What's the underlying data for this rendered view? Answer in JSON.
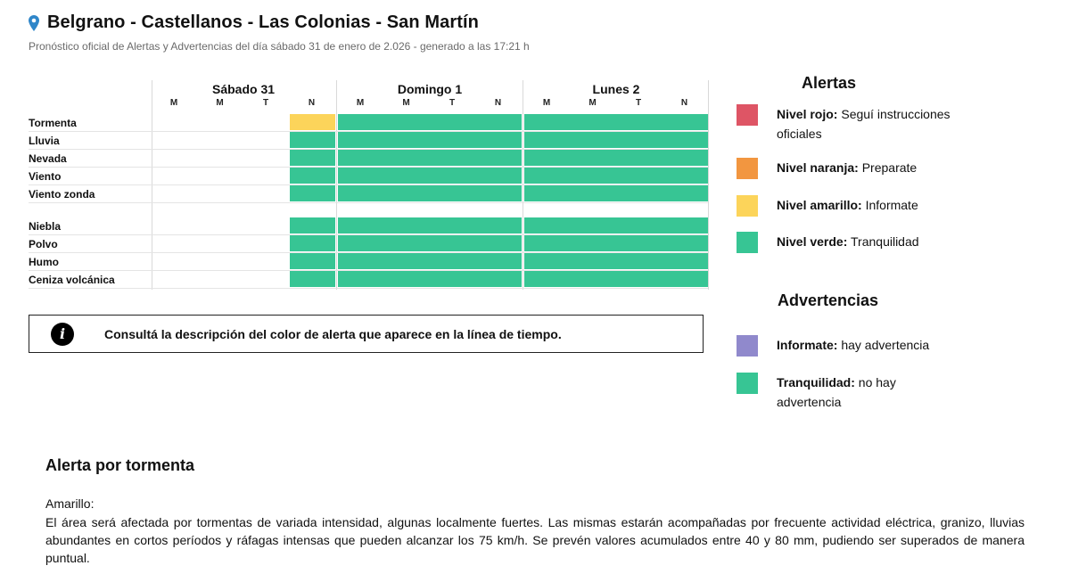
{
  "header": {
    "title": "Belgrano - Castellanos - Las Colonias - San Martín",
    "subtitle": "Pronóstico oficial de Alertas y Advertencias del día sábado 31 de enero de 2.026 - generado a las 17:21 h"
  },
  "timeline": {
    "days": [
      {
        "name": "Sábado 31",
        "periods": [
          "M",
          "M",
          "T",
          "N"
        ]
      },
      {
        "name": "Domingo 1",
        "periods": [
          "M",
          "M",
          "T",
          "N"
        ]
      },
      {
        "name": "Lunes 2",
        "periods": [
          "M",
          "M",
          "T",
          "N"
        ]
      }
    ],
    "hazards": [
      {
        "label": "Tormenta",
        "levels": [
          "none",
          "none",
          "none",
          "amarillo",
          "verde",
          "verde",
          "verde",
          "verde",
          "verde",
          "verde",
          "verde",
          "verde"
        ]
      },
      {
        "label": "Lluvia",
        "levels": [
          "none",
          "none",
          "none",
          "verde",
          "verde",
          "verde",
          "verde",
          "verde",
          "verde",
          "verde",
          "verde",
          "verde"
        ]
      },
      {
        "label": "Nevada",
        "levels": [
          "none",
          "none",
          "none",
          "verde",
          "verde",
          "verde",
          "verde",
          "verde",
          "verde",
          "verde",
          "verde",
          "verde"
        ]
      },
      {
        "label": "Viento",
        "levels": [
          "none",
          "none",
          "none",
          "verde",
          "verde",
          "verde",
          "verde",
          "verde",
          "verde",
          "verde",
          "verde",
          "verde"
        ]
      },
      {
        "label": "Viento zonda",
        "levels": [
          "none",
          "none",
          "none",
          "verde",
          "verde",
          "verde",
          "verde",
          "verde",
          "verde",
          "verde",
          "verde",
          "verde"
        ]
      }
    ],
    "warnings": [
      {
        "label": "Niebla",
        "levels": [
          "none",
          "none",
          "none",
          "verde",
          "verde",
          "verde",
          "verde",
          "verde",
          "verde",
          "verde",
          "verde",
          "verde"
        ]
      },
      {
        "label": "Polvo",
        "levels": [
          "none",
          "none",
          "none",
          "verde",
          "verde",
          "verde",
          "verde",
          "verde",
          "verde",
          "verde",
          "verde",
          "verde"
        ]
      },
      {
        "label": "Humo",
        "levels": [
          "none",
          "none",
          "none",
          "verde",
          "verde",
          "verde",
          "verde",
          "verde",
          "verde",
          "verde",
          "verde",
          "verde"
        ]
      },
      {
        "label": "Ceniza volcánica",
        "levels": [
          "none",
          "none",
          "none",
          "verde",
          "verde",
          "verde",
          "verde",
          "verde",
          "verde",
          "verde",
          "verde",
          "verde"
        ]
      }
    ]
  },
  "colors": {
    "rojo": "#de5565",
    "naranja": "#f29640",
    "amarillo": "#fcd45a",
    "verde": "#37c594",
    "violeta": "#9089cc"
  },
  "info_box": {
    "icon": "info-icon",
    "text": "Consultá la descripción del color de alerta que aparece en la línea de tiempo."
  },
  "legend": {
    "alertas_title": "Alertas",
    "alertas": [
      {
        "strong": "Nivel rojo:",
        "text": " Seguí instrucciones oficiales",
        "color": "#de5565"
      },
      {
        "strong": "Nivel naranja:",
        "text": " Preparate",
        "color": "#f29640"
      },
      {
        "strong": "Nivel amarillo:",
        "text": " Informate",
        "color": "#fcd45a"
      },
      {
        "strong": "Nivel verde:",
        "text": " Tranquilidad",
        "color": "#37c594"
      }
    ],
    "advertencias_title": "Advertencias",
    "advertencias": [
      {
        "strong": "Informate:",
        "text": " hay advertencia",
        "color": "#9089cc"
      },
      {
        "strong": "Tranquilidad:",
        "text": " no hay advertencia",
        "color": "#37c594"
      }
    ]
  },
  "alert": {
    "title": "Alerta por tormenta",
    "level": "Amarillo:",
    "description": "El área será afectada por tormentas de variada intensidad, algunas localmente fuertes. Las mismas estarán acompañadas por frecuente actividad eléctrica, granizo, lluvias abundantes en cortos períodos y ráfagas intensas que pueden alcanzar los 75 km/h. Se prevén valores acumulados entre 40 y 80 mm, pudiendo ser superados de manera puntual."
  }
}
